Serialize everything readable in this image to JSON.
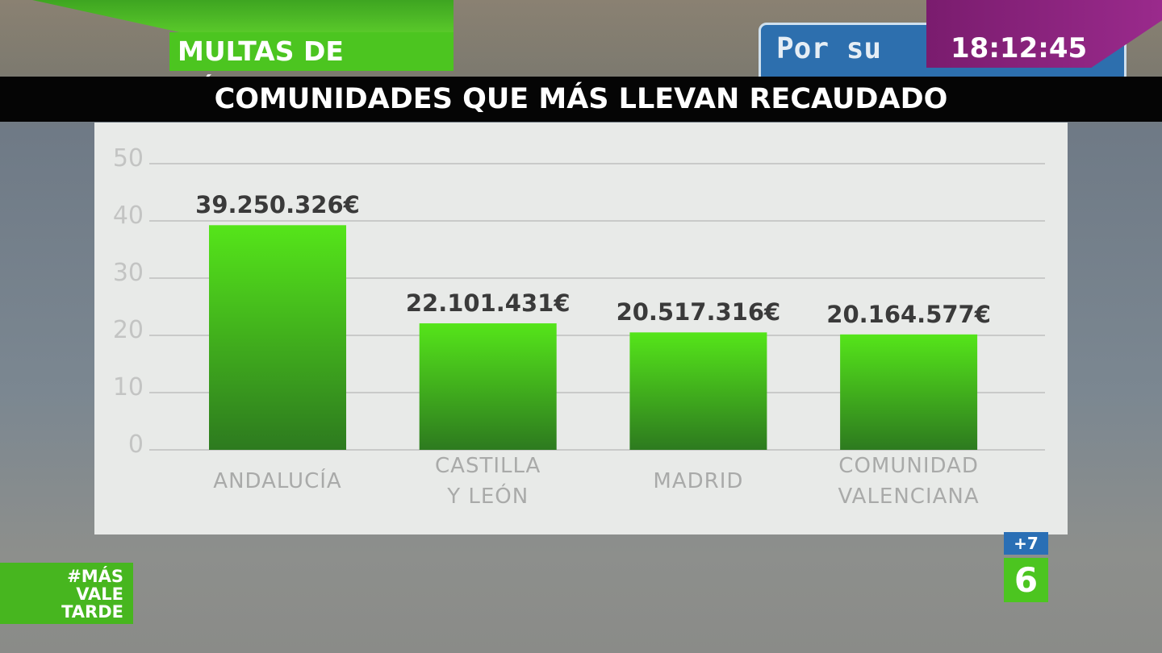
{
  "banner": "MULTAS DE RÉCORD",
  "clock": "18:12:45",
  "sign_text": "Por su",
  "hashtag": "#MÁS\nVALE\nTARDE",
  "channel_plus": "+7",
  "channel_logo": "6",
  "chart_data": {
    "type": "bar",
    "title": "COMUNIDADES QUE MÁS LLEVAN RECAUDADO",
    "categories": [
      "ANDALUCÍA",
      "CASTILLA\nY LEÓN",
      "MADRID",
      "COMUNIDAD\nVALENCIANA"
    ],
    "values": [
      39.250326,
      22.101431,
      20.517316,
      20.164577
    ],
    "value_labels": [
      "39.250.326€",
      "22.101.431€",
      "20.517.316€",
      "20.164.577€"
    ],
    "color": "#4fd81a",
    "ylim": [
      0,
      50
    ],
    "yticks": [
      0,
      10,
      20,
      30,
      40,
      50
    ],
    "grid": true
  }
}
